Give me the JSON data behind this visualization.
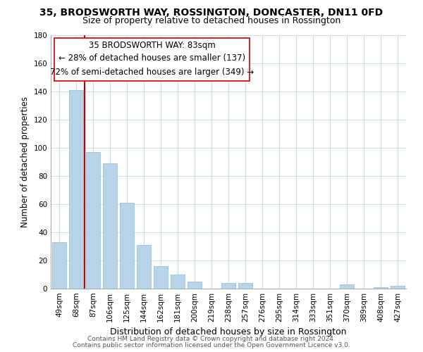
{
  "title": "35, BRODSWORTH WAY, ROSSINGTON, DONCASTER, DN11 0FD",
  "subtitle": "Size of property relative to detached houses in Rossington",
  "xlabel": "Distribution of detached houses by size in Rossington",
  "ylabel": "Number of detached properties",
  "categories": [
    "49sqm",
    "68sqm",
    "87sqm",
    "106sqm",
    "125sqm",
    "144sqm",
    "162sqm",
    "181sqm",
    "200sqm",
    "219sqm",
    "238sqm",
    "257sqm",
    "276sqm",
    "295sqm",
    "314sqm",
    "333sqm",
    "351sqm",
    "370sqm",
    "389sqm",
    "408sqm",
    "427sqm"
  ],
  "values": [
    33,
    141,
    97,
    89,
    61,
    31,
    16,
    10,
    5,
    0,
    4,
    4,
    0,
    0,
    0,
    0,
    0,
    3,
    0,
    1,
    2
  ],
  "bar_color": "#b8d4e8",
  "bar_edge_color": "#9abfd8",
  "vline_color": "#cc0000",
  "vline_at_index": 1.5,
  "ylim": [
    0,
    180
  ],
  "yticks": [
    0,
    20,
    40,
    60,
    80,
    100,
    120,
    140,
    160,
    180
  ],
  "annotation_line1": "35 BRODSWORTH WAY: 83sqm",
  "annotation_line2": "← 28% of detached houses are smaller (137)",
  "annotation_line3": "72% of semi-detached houses are larger (349) →",
  "footer_line1": "Contains HM Land Registry data © Crown copyright and database right 2024.",
  "footer_line2": "Contains public sector information licensed under the Open Government Licence v3.0.",
  "background_color": "#ffffff",
  "grid_color": "#ccdde8",
  "title_fontsize": 10,
  "subtitle_fontsize": 9,
  "xlabel_fontsize": 9,
  "ylabel_fontsize": 8.5,
  "tick_fontsize": 7.5,
  "footer_fontsize": 6.5,
  "annotation_fontsize": 8.5
}
